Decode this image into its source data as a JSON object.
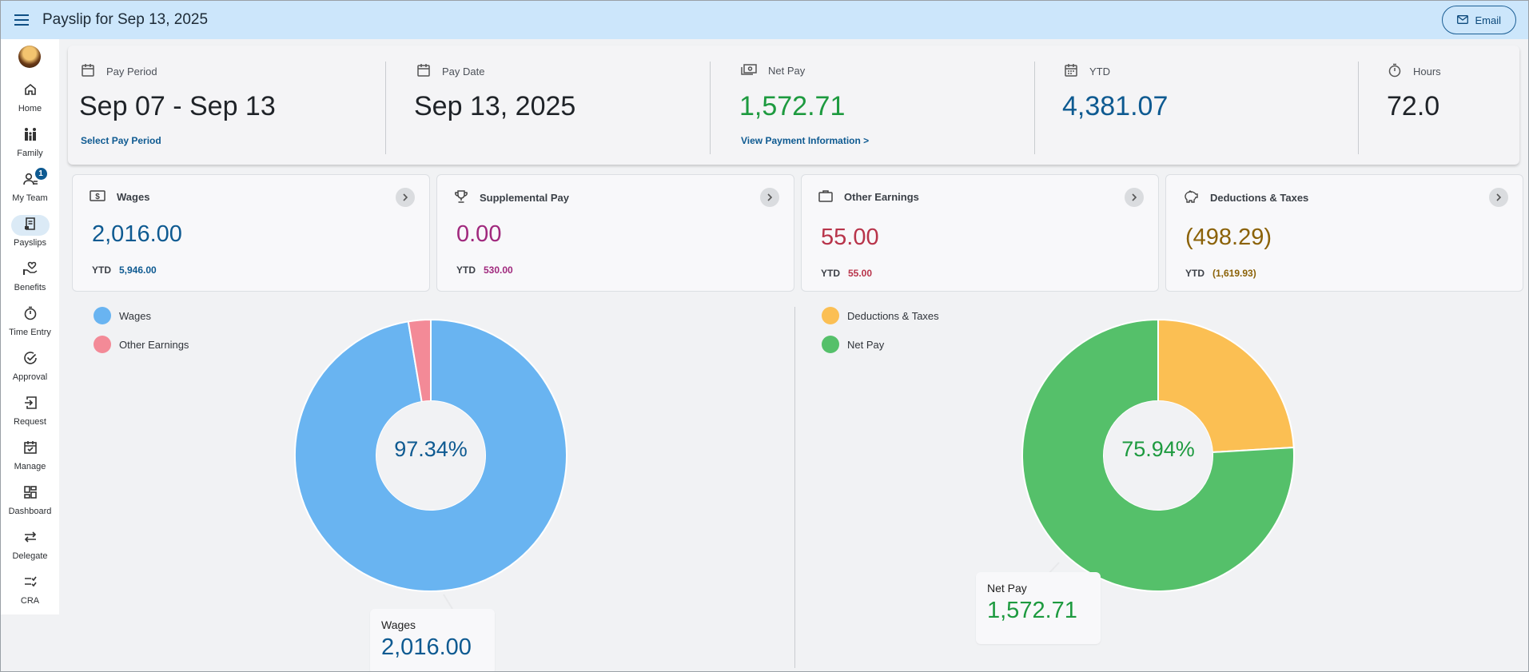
{
  "header": {
    "title": "Payslip for Sep 13, 2025",
    "email_label": "Email",
    "bg": "#cce6fb"
  },
  "sidebar": {
    "items": [
      {
        "label": "Home",
        "icon": "home-icon"
      },
      {
        "label": "Family",
        "icon": "family-icon"
      },
      {
        "label": "My Team",
        "icon": "team-icon",
        "badge": "1"
      },
      {
        "label": "Payslips",
        "icon": "payslip-icon",
        "active": true
      },
      {
        "label": "Benefits",
        "icon": "benefits-icon"
      },
      {
        "label": "Time Entry",
        "icon": "timer-icon"
      },
      {
        "label": "Approval",
        "icon": "check-circle-icon"
      },
      {
        "label": "Request",
        "icon": "login-arrow-icon"
      },
      {
        "label": "Manage",
        "icon": "calendar-check-icon"
      },
      {
        "label": "Dashboard",
        "icon": "dashboard-icon"
      },
      {
        "label": "Delegate",
        "icon": "swap-arrows-icon"
      },
      {
        "label": "CRA",
        "icon": "checklist-icon"
      }
    ]
  },
  "summary": {
    "pay_period": {
      "label": "Pay Period",
      "value": "Sep 07 - Sep 13",
      "link": "Select Pay Period",
      "color": "#1f2328"
    },
    "pay_date": {
      "label": "Pay Date",
      "value": "Sep 13, 2025",
      "color": "#1f2328"
    },
    "net_pay": {
      "label": "Net Pay",
      "value": "1,572.71",
      "link": "View Payment Information >",
      "color": "#1d9a3f"
    },
    "ytd": {
      "label": "YTD",
      "value": "4,381.07",
      "color": "#0e5a91"
    },
    "hours": {
      "label": "Hours",
      "value": "72.0",
      "color": "#1f2328"
    }
  },
  "cards": [
    {
      "title": "Wages",
      "value": "2,016.00",
      "ytd_label": "YTD",
      "ytd_value": "5,946.00",
      "color": "#0e5a91",
      "icon": "dollar-bill-icon"
    },
    {
      "title": "Supplemental Pay",
      "value": "0.00",
      "ytd_label": "YTD",
      "ytd_value": "530.00",
      "color": "#a0287d",
      "icon": "trophy-icon"
    },
    {
      "title": "Other Earnings",
      "value": "55.00",
      "ytd_label": "YTD",
      "ytd_value": "55.00",
      "color": "#b8344a",
      "icon": "briefcase-icon"
    },
    {
      "title": "Deductions & Taxes",
      "value": "(498.29)",
      "ytd_label": "YTD",
      "ytd_value": "(1,619.93)",
      "color": "#8b6208",
      "icon": "piggy-bank-icon"
    }
  ],
  "chart_data": [
    {
      "type": "pie",
      "categories": [
        "Wages",
        "Other Earnings"
      ],
      "values": [
        2016.0,
        55.0
      ],
      "colors": [
        "#69b4f1",
        "#f38a97"
      ],
      "center_label": "97.34%",
      "center_color": "#0e5a91",
      "legend": "top-left",
      "tooltip": {
        "label": "Wages",
        "value": "2,016.00",
        "color": "#0e5a91"
      }
    },
    {
      "type": "pie",
      "categories": [
        "Deductions & Taxes",
        "Net Pay"
      ],
      "values": [
        498.29,
        1572.71
      ],
      "colors": [
        "#fbbf53",
        "#55c06a"
      ],
      "center_label": "75.94%",
      "center_color": "#1d9a3f",
      "legend": "top-left",
      "tooltip": {
        "label": "Net Pay",
        "value": "1,572.71",
        "color": "#1d9a3f"
      }
    }
  ]
}
